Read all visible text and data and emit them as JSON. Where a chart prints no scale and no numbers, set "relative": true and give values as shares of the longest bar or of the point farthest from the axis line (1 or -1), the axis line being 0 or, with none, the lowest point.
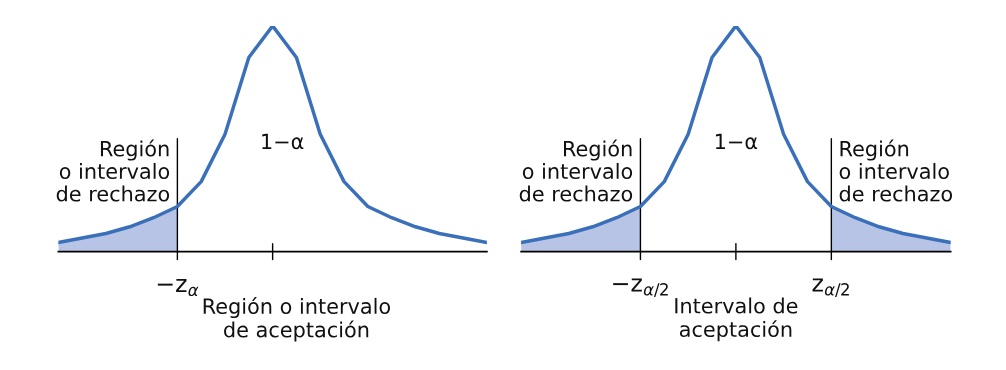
{
  "chart_data": [
    {
      "type": "line",
      "relative": true,
      "categories": [
        null,
        null,
        null,
        null,
        null,
        null,
        null,
        null,
        null,
        null,
        null,
        null,
        null,
        null,
        null,
        null,
        null,
        null,
        null
      ],
      "series": [
        {
          "type": "area",
          "color": "#b8c4e6",
          "values": [
            0.04,
            0.06,
            0.08,
            0.11,
            0.15,
            0.2,
            null,
            null,
            null,
            null,
            null,
            null,
            null,
            null,
            null,
            null,
            null,
            null,
            null
          ]
        },
        {
          "type": "line",
          "color": "#3a70ba",
          "values": [
            0.04,
            0.06,
            0.08,
            0.11,
            0.15,
            0.2,
            0.31,
            0.52,
            0.86,
            1,
            0.86,
            0.52,
            0.31,
            0.2,
            0.15,
            0.11,
            0.08,
            0.06,
            0.04
          ]
        }
      ],
      "annotations": [
        "Región\no intervalo\nde rechazo",
        "1−α",
        "Región o intervalo\nde aceptación",
        "−z$_{α}$"
      ]
    },
    {
      "type": "line",
      "relative": true,
      "categories": [
        null,
        null,
        null,
        null,
        null,
        null,
        null,
        null,
        null,
        null,
        null,
        null,
        null,
        null,
        null,
        null,
        null,
        null,
        null
      ],
      "series": [
        {
          "type": "area",
          "color": "#b8c4e6",
          "values": [
            0.04,
            0.06,
            0.08,
            0.11,
            0.15,
            0.2,
            null,
            null,
            null,
            null,
            null,
            null,
            null,
            null,
            null,
            null,
            null,
            null,
            null
          ]
        },
        {
          "type": "area",
          "color": "#b8c4e6",
          "values": [
            null,
            null,
            null,
            null,
            null,
            null,
            null,
            null,
            null,
            null,
            null,
            null,
            null,
            0.2,
            0.15,
            0.11,
            0.08,
            0.06,
            0.04
          ]
        },
        {
          "type": "line",
          "color": "#3a70ba",
          "values": [
            0.04,
            0.06,
            0.08,
            0.11,
            0.15,
            0.2,
            0.31,
            0.52,
            0.86,
            1,
            0.86,
            0.52,
            0.31,
            0.2,
            0.15,
            0.11,
            0.08,
            0.06,
            0.04
          ]
        }
      ],
      "annotations": [
        "Región\no intervalo\nde rechazo",
        "1−α",
        "Región\no intervalo\nde rechazo",
        "Intervalo de\naceptación",
        "−z$_{α/2}$",
        "z$_{α/2}$"
      ]
    }
  ]
}
